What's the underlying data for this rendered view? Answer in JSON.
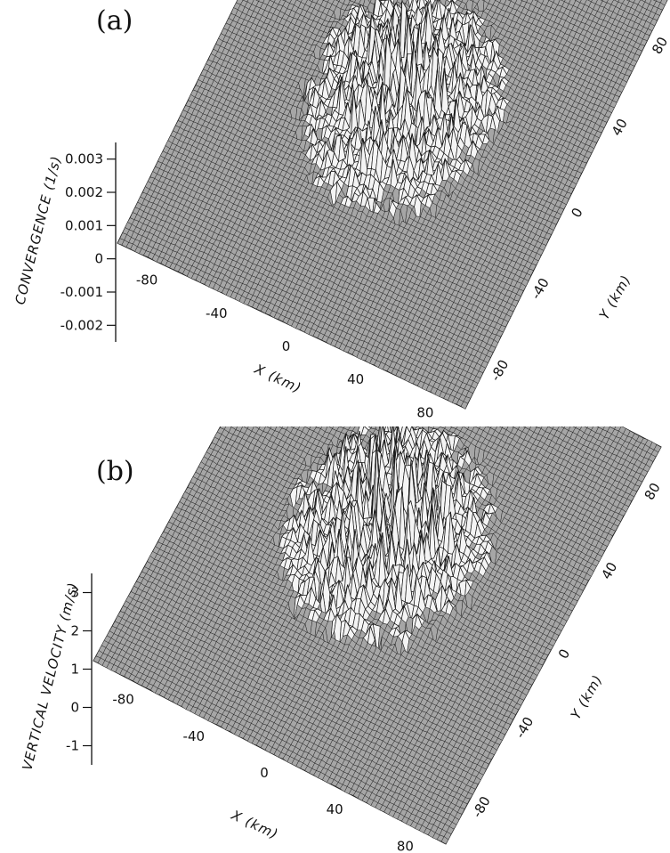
{
  "chart_data": [
    {
      "panel_label": "(a)",
      "type": "surface3d",
      "x_label": "X (km)",
      "y_label": "Y (km)",
      "z_label": "CONVERGENCE (1/s)",
      "x_ticks": [
        "-80",
        "-40",
        "0",
        "40",
        "80"
      ],
      "y_ticks": [
        "-80",
        "-40",
        "0",
        "40",
        "80"
      ],
      "z_ticks": [
        "0.003",
        "0.002",
        "0.001",
        "0",
        "-0.001",
        "-0.002"
      ],
      "x_range": [
        -100,
        100
      ],
      "y_range": [
        -100,
        100
      ],
      "z_range": [
        -0.0025,
        0.0035
      ],
      "peak_region": {
        "center_x": 0,
        "center_y": 10,
        "radius": 55
      },
      "peak_max": 0.003
    },
    {
      "panel_label": "(b)",
      "type": "surface3d",
      "x_label": "X (km)",
      "y_label": "Y (km)",
      "z_label": "VERTICAL VELOCITY (m/s)",
      "x_ticks": [
        "-80",
        "-40",
        "0",
        "40",
        "80"
      ],
      "y_ticks": [
        "-80",
        "-40",
        "0",
        "40",
        "80"
      ],
      "z_ticks": [
        "3",
        "2",
        "1",
        "0",
        "-1"
      ],
      "x_range": [
        -100,
        100
      ],
      "y_range": [
        -100,
        100
      ],
      "z_range": [
        -1.5,
        3.5
      ],
      "peak_region": {
        "center_x": 0,
        "center_y": 10,
        "radius": 55
      },
      "peak_max": 3
    }
  ]
}
